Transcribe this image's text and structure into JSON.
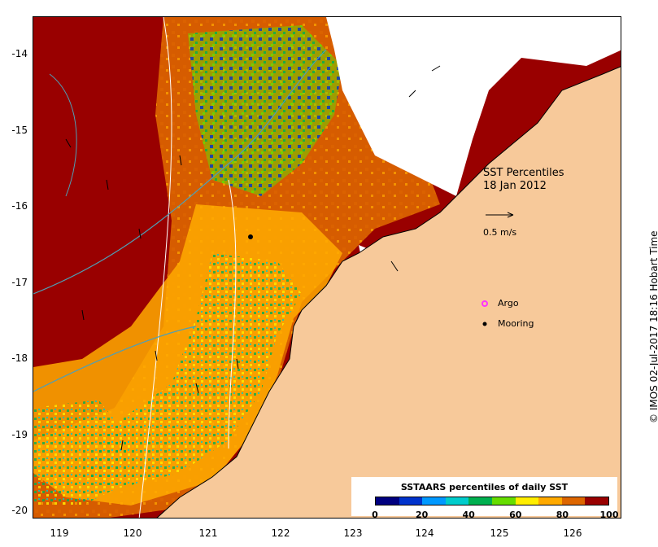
{
  "map": {
    "title_line1": "SST Percentiles",
    "title_line2": "18 Jan 2012",
    "vector_label": "0.5 m/s",
    "argo_label": "Argo",
    "mooring_label": "Mooring",
    "credit": "© IMOS 02-Jul-2017 18:16 Hobart Time",
    "lat_ticks": [
      "-14",
      "-15",
      "-16",
      "-17",
      "-18",
      "-19",
      "-20"
    ],
    "lon_ticks": [
      "119",
      "120",
      "121",
      "122",
      "123",
      "124",
      "125",
      "126"
    ],
    "colors": {
      "land": "#f7c99a",
      "no_data": "#ffffff",
      "argo_marker": "#ff33ff",
      "mooring_marker": "#000000"
    }
  },
  "colorbar": {
    "title": "SSTAARS percentiles of daily SST",
    "ticks": [
      "0",
      "20",
      "40",
      "60",
      "80",
      "100"
    ],
    "colors": [
      "#000080",
      "#0033cc",
      "#0099ff",
      "#00cccc",
      "#00b050",
      "#66dd00",
      "#ffee00",
      "#ffaa00",
      "#dd6600",
      "#990000"
    ]
  }
}
